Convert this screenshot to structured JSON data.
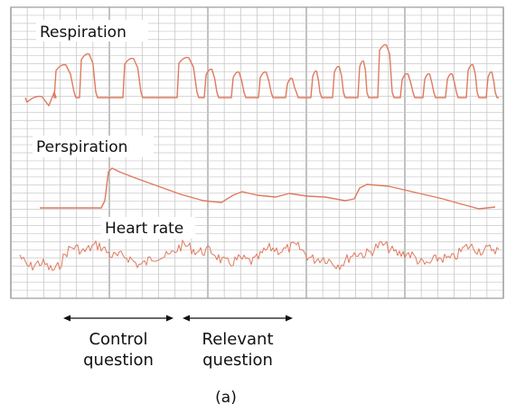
{
  "figure": {
    "caption": "(a)",
    "traces": [
      {
        "label": "Respiration",
        "color": "#e07a5f"
      },
      {
        "label": "Perspiration",
        "color": "#e07a5f"
      },
      {
        "label": "Heart rate",
        "color": "#e07a5f"
      }
    ],
    "phases": [
      {
        "line1": "Control",
        "line2": "question"
      },
      {
        "line1": "Relevant",
        "line2": "question"
      }
    ]
  },
  "colors": {
    "grid_minor": "#c8c8c8",
    "grid_major": "#a8a8a8",
    "trace": "#e07a5f",
    "text": "#111111"
  }
}
